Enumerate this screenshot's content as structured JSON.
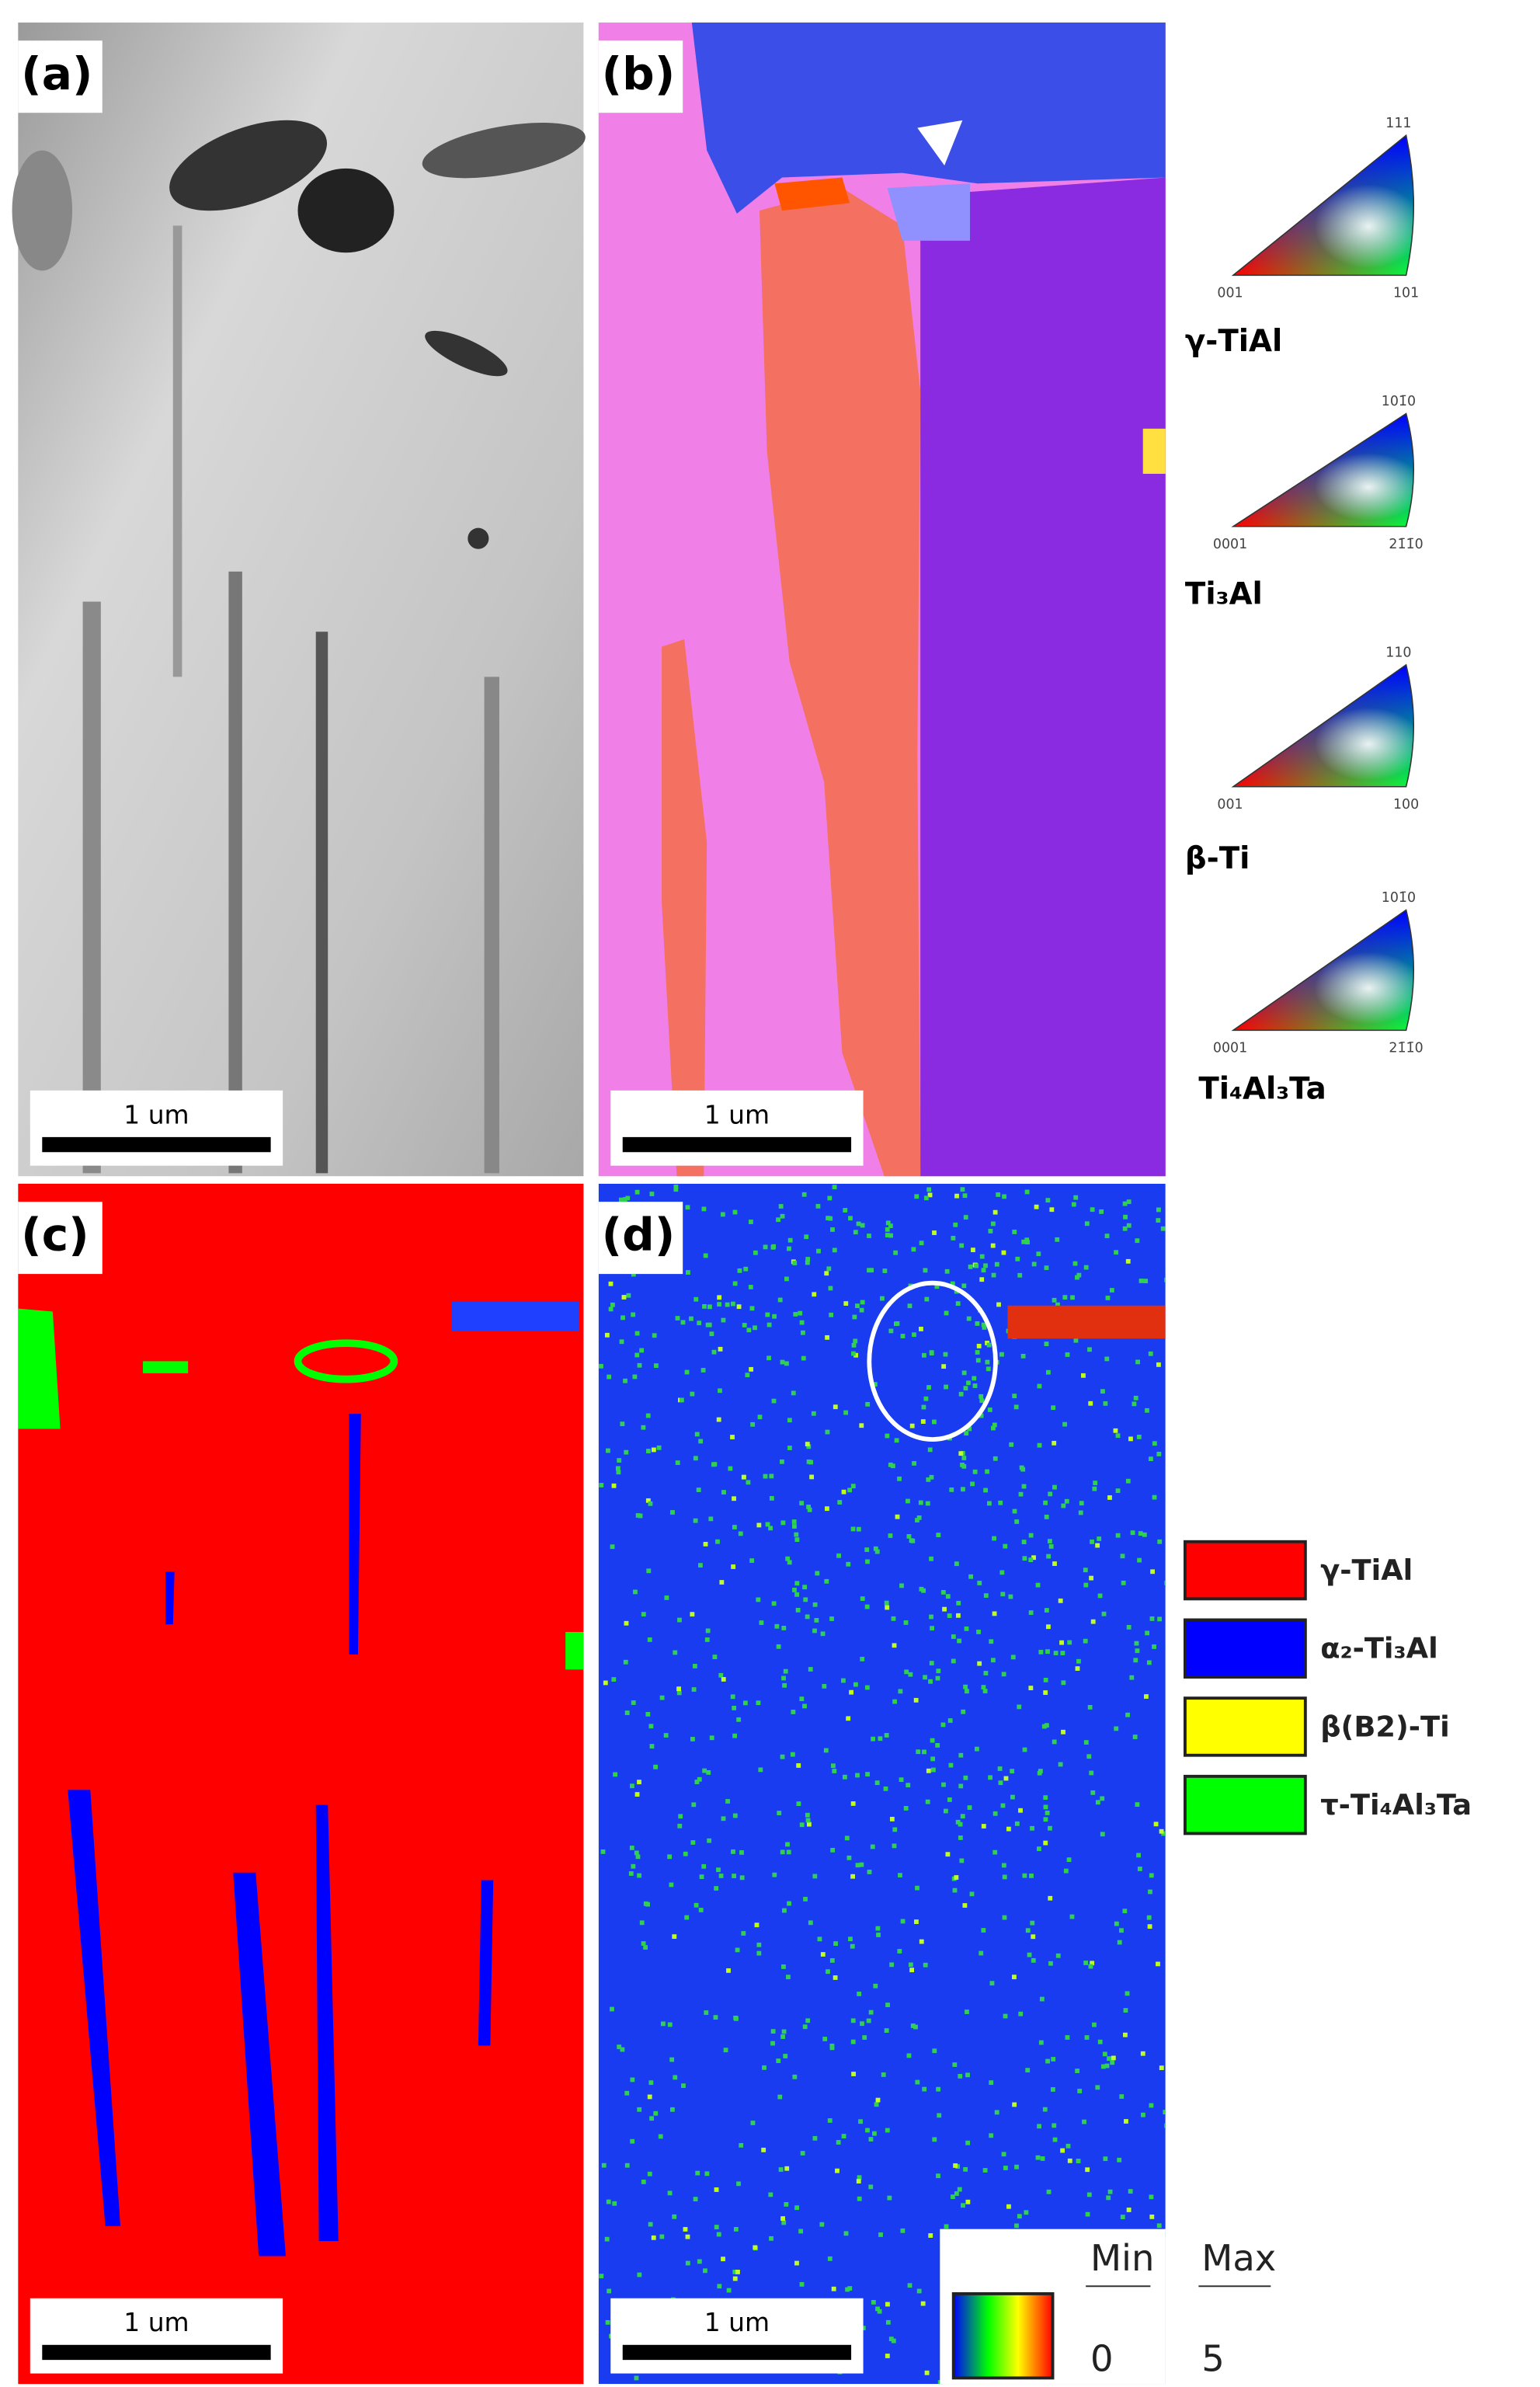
{
  "panels": [
    {
      "label": "(a)",
      "scale_bar": "1 um"
    },
    {
      "label": "(b)",
      "scale_bar": "1 um"
    },
    {
      "label": "(c)",
      "scale_bar": "1 um"
    },
    {
      "label": "(d)",
      "scale_bar": "1 um"
    }
  ],
  "ipf_legends": [
    {
      "phase": "γ-TiAl",
      "corners": [
        "001",
        "101",
        "111"
      ]
    },
    {
      "phase": "Ti₃Al",
      "corners": [
        "0001",
        "21̄1̄0",
        "101̄0"
      ]
    },
    {
      "phase": "β-Ti",
      "corners": [
        "001",
        "100",
        "110"
      ]
    },
    {
      "phase": "Ti₄Al₃Ta",
      "corners": [
        "0001",
        "21̄1̄0",
        "101̄0"
      ]
    }
  ],
  "phase_legend": [
    {
      "name": "γ-TiAl",
      "color": "#ff0000"
    },
    {
      "name": "α₂-Ti₃Al",
      "color": "#0000ff"
    },
    {
      "name": "β(B2)-Ti",
      "color": "#ffff00"
    },
    {
      "name": "τ-Ti₄Al₃Ta",
      "color": "#00ff00"
    }
  ],
  "colorbar": {
    "min_label": "Min",
    "max_label": "Max",
    "min": 0,
    "max": 5
  }
}
